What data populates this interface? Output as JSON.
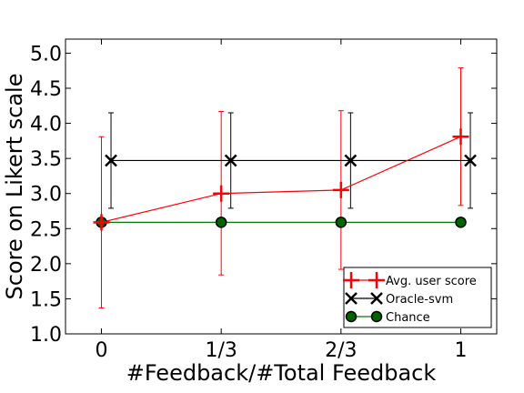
{
  "chart_data": {
    "type": "line",
    "xlabel": "#Feedback/#Total Feedback",
    "ylabel": "Score on Likert scale",
    "categories": [
      "0",
      "1/3",
      "2/3",
      "1"
    ],
    "x": [
      0,
      1,
      2,
      3
    ],
    "xlim": [
      -0.3,
      3.3
    ],
    "ylim": [
      1.0,
      5.2
    ],
    "yticks": [
      "1.0",
      "1.5",
      "2.0",
      "2.5",
      "3.0",
      "3.5",
      "4.0",
      "4.5",
      "5.0"
    ],
    "grid": false,
    "legend_position": "lower-right",
    "series": [
      {
        "name": "Avg. user score",
        "color": "#ff0000",
        "marker": "plus",
        "x_offset": 0,
        "values": [
          2.59,
          3.0,
          3.05,
          3.81
        ],
        "err_low": [
          1.37,
          1.84,
          1.92,
          2.83
        ],
        "err_high": [
          3.81,
          4.17,
          4.18,
          4.79
        ]
      },
      {
        "name": "Oracle-svm",
        "color": "#000000",
        "marker": "x",
        "x_offset": 0.08,
        "values": [
          3.47,
          3.47,
          3.47,
          3.47
        ],
        "err_low": [
          2.79,
          2.79,
          2.79,
          2.79
        ],
        "err_high": [
          4.15,
          4.15,
          4.15,
          4.15
        ]
      },
      {
        "name": "Chance",
        "color": "#008000",
        "marker": "circle",
        "marker_fill": "#006400",
        "x_offset": 0,
        "values": [
          2.59,
          2.59,
          2.59,
          2.59
        ]
      }
    ]
  }
}
